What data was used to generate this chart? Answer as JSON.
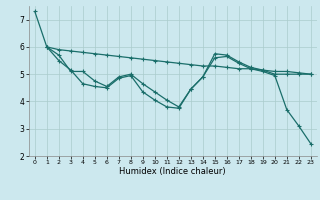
{
  "xlabel": "Humidex (Indice chaleur)",
  "bg_color": "#cce8ee",
  "grid_color": "#aacccc",
  "line_color": "#1a6e6a",
  "xlim": [
    -0.5,
    23.5
  ],
  "ylim": [
    2.0,
    7.5
  ],
  "yticks": [
    2,
    3,
    4,
    5,
    6,
    7
  ],
  "xticks": [
    0,
    1,
    2,
    3,
    4,
    5,
    6,
    7,
    8,
    9,
    10,
    11,
    12,
    13,
    14,
    15,
    16,
    17,
    18,
    19,
    20,
    21,
    22,
    23
  ],
  "line1_x": [
    0,
    1,
    2,
    3,
    4,
    5,
    6,
    7,
    8,
    9,
    10,
    11,
    12,
    13,
    14,
    15,
    16,
    17,
    18,
    19,
    20,
    21,
    22,
    23
  ],
  "line1_y": [
    7.3,
    6.0,
    5.9,
    5.85,
    5.8,
    5.75,
    5.7,
    5.65,
    5.6,
    5.55,
    5.5,
    5.45,
    5.4,
    5.35,
    5.3,
    5.3,
    5.25,
    5.2,
    5.2,
    5.15,
    5.1,
    5.1,
    5.05,
    5.0
  ],
  "line2_x": [
    1,
    2,
    3,
    4,
    5,
    6,
    7,
    8,
    9,
    10,
    11,
    12,
    13,
    14,
    15,
    16,
    17,
    18,
    19,
    20,
    21,
    22,
    23
  ],
  "line2_y": [
    6.0,
    5.7,
    5.1,
    5.1,
    4.75,
    4.55,
    4.9,
    5.0,
    4.65,
    4.35,
    4.05,
    3.8,
    4.45,
    4.9,
    5.75,
    5.7,
    5.45,
    5.25,
    5.15,
    5.0,
    5.0,
    5.0,
    5.0
  ],
  "line3_x": [
    1,
    2,
    3,
    4,
    5,
    6,
    7,
    8,
    9,
    10,
    11,
    12,
    13,
    14,
    15,
    16,
    17,
    18,
    19,
    20,
    21,
    22,
    23
  ],
  "line3_y": [
    6.0,
    5.5,
    5.15,
    4.65,
    4.55,
    4.5,
    4.85,
    4.95,
    4.35,
    4.05,
    3.8,
    3.75,
    4.45,
    4.9,
    5.6,
    5.65,
    5.4,
    5.2,
    5.1,
    4.95,
    3.7,
    3.1,
    2.45
  ]
}
